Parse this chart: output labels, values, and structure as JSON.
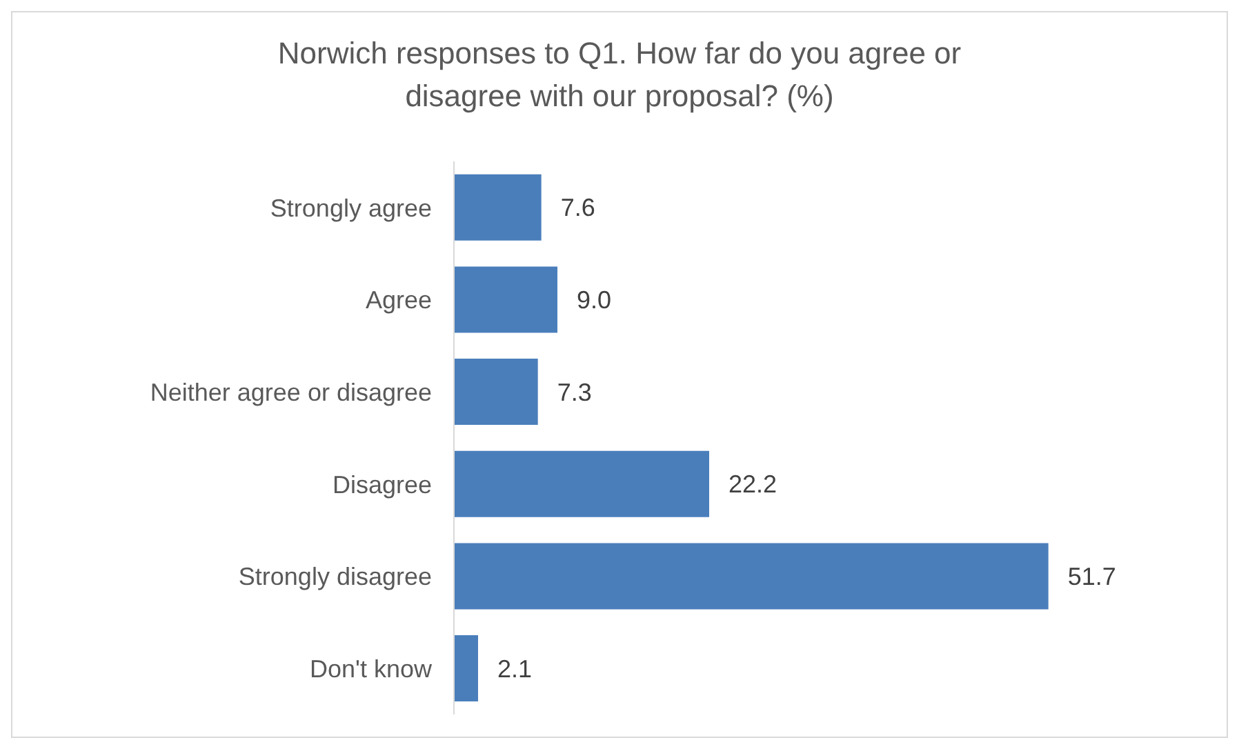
{
  "chart_data": {
    "type": "bar",
    "orientation": "horizontal",
    "title": "Norwich responses to Q1. How far do you agree or disagree with our proposal? (%)",
    "categories": [
      "Strongly agree",
      "Agree",
      "Neither agree or disagree",
      "Disagree",
      "Strongly disagree",
      "Don't know"
    ],
    "values": [
      7.6,
      9.0,
      7.3,
      22.2,
      51.7,
      2.1
    ],
    "value_labels": [
      "7.6",
      "9.0",
      "7.3",
      "22.2",
      "51.7",
      "2.1"
    ],
    "color": "#4a7ebb"
  }
}
